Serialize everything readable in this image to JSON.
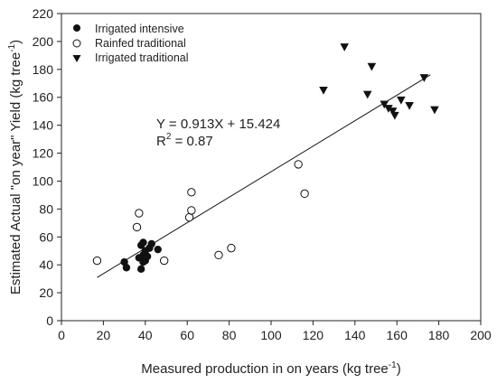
{
  "chart_data": {
    "type": "scatter",
    "xlabel": "Measured production in on years (kg tree",
    "xlabel_sup": "-1",
    "xlabel_tail": ")",
    "ylabel": "Estimated Actual \"on year\" Yield    (kg tree",
    "ylabel_sup": "-1",
    "ylabel_tail": ")",
    "xlim": [
      0,
      200
    ],
    "ylim": [
      0,
      220
    ],
    "x_ticks": [
      0,
      20,
      40,
      60,
      80,
      100,
      120,
      140,
      160,
      180,
      200
    ],
    "y_ticks": [
      0,
      20,
      40,
      60,
      80,
      100,
      120,
      140,
      160,
      180,
      200,
      220
    ],
    "grid": false,
    "legend_position": "top-left",
    "series": [
      {
        "name": "Irrigated intensive",
        "marker": "filled-circle",
        "points": [
          [
            30,
            42
          ],
          [
            31,
            38
          ],
          [
            37,
            45
          ],
          [
            38,
            37
          ],
          [
            38,
            54
          ],
          [
            39,
            47
          ],
          [
            39,
            56
          ],
          [
            40,
            43
          ],
          [
            40,
            50
          ],
          [
            41,
            46
          ],
          [
            42,
            52
          ],
          [
            43,
            55
          ],
          [
            46,
            51
          ],
          [
            39,
            42
          ]
        ]
      },
      {
        "name": "Rainfed traditional",
        "marker": "open-circle",
        "points": [
          [
            17,
            43
          ],
          [
            36,
            67
          ],
          [
            37,
            77
          ],
          [
            49,
            43
          ],
          [
            61,
            74
          ],
          [
            62,
            79
          ],
          [
            62,
            92
          ],
          [
            75,
            47
          ],
          [
            81,
            52
          ],
          [
            113,
            112
          ],
          [
            116,
            91
          ]
        ]
      },
      {
        "name": "Irrigated traditional",
        "marker": "filled-triangle-down",
        "points": [
          [
            125,
            165
          ],
          [
            135,
            196
          ],
          [
            146,
            162
          ],
          [
            148,
            182
          ],
          [
            154,
            155
          ],
          [
            156,
            152
          ],
          [
            158,
            150
          ],
          [
            159,
            147
          ],
          [
            162,
            158
          ],
          [
            166,
            154
          ],
          [
            173,
            174
          ],
          [
            178,
            151
          ]
        ]
      }
    ],
    "regression": {
      "slope": 0.913,
      "intercept": 15.424,
      "x_range": [
        17,
        176
      ]
    },
    "annotations": {
      "equation": "Y = 0.913X + 15.424",
      "r2_prefix": "R",
      "r2_sup": "2",
      "r2_value": " = 0.87"
    }
  }
}
